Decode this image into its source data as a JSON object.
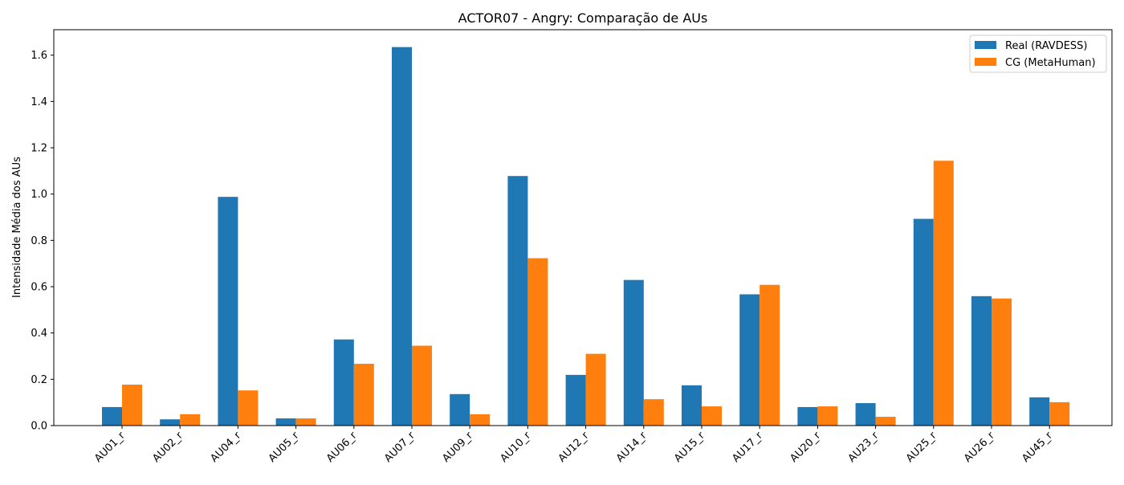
{
  "chart_data": {
    "type": "bar",
    "title": "ACTOR07 - Angry: Comparação de AUs",
    "xlabel": "",
    "ylabel": "Intensidade Média dos AUs",
    "ylim": [
      0,
      1.71
    ],
    "yticks": [
      "0.0",
      "0.2",
      "0.4",
      "0.6",
      "0.8",
      "1.0",
      "1.2",
      "1.4",
      "1.6"
    ],
    "grid": false,
    "legend_position": "top-right",
    "categories": [
      "AU01_r",
      "AU02_r",
      "AU04_r",
      "AU05_r",
      "AU06_r",
      "AU07_r",
      "AU09_r",
      "AU10_r",
      "AU12_r",
      "AU14_r",
      "AU15_r",
      "AU17_r",
      "AU20_r",
      "AU23_r",
      "AU25_r",
      "AU26_r",
      "AU45_r"
    ],
    "series": [
      {
        "name": "Real (RAVDESS)",
        "color": "#1f77b4",
        "values": [
          0.08,
          0.027,
          0.988,
          0.031,
          0.372,
          1.635,
          0.136,
          1.078,
          0.219,
          0.629,
          0.174,
          0.567,
          0.08,
          0.097,
          0.893,
          0.559,
          0.122
        ]
      },
      {
        "name": "CG (MetaHuman)",
        "color": "#ff7f0e",
        "values": [
          0.177,
          0.049,
          0.152,
          0.031,
          0.267,
          0.345,
          0.049,
          0.723,
          0.31,
          0.114,
          0.083,
          0.608,
          0.083,
          0.038,
          1.144,
          0.549,
          0.101
        ]
      }
    ]
  }
}
